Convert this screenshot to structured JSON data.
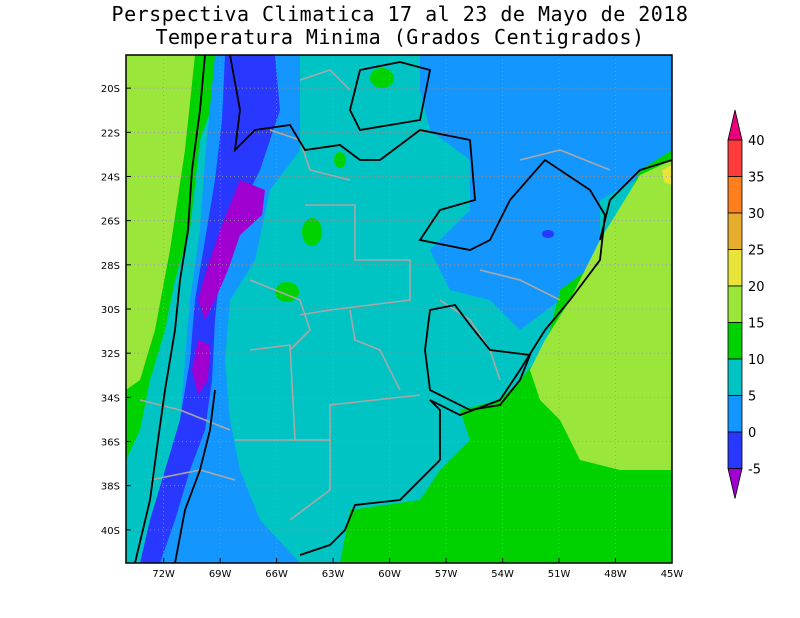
{
  "title": {
    "line1": "Perspectiva Climatica 17 al 23 de  Mayo de 2018",
    "line2": "Temperatura Minima (Grados Centigrados)"
  },
  "map": {
    "lat_labels": [
      "20S",
      "22S",
      "24S",
      "26S",
      "28S",
      "30S",
      "32S",
      "34S",
      "36S",
      "38S",
      "40S"
    ],
    "lon_labels": [
      "72W",
      "69W",
      "66W",
      "63W",
      "60W",
      "57W",
      "54W",
      "51W",
      "48W",
      "45W"
    ],
    "lat_range": [
      -41.5,
      -18.5
    ],
    "lon_range": [
      -74,
      -45
    ],
    "grid": "dotted"
  },
  "colorbar": {
    "labels": [
      "40",
      "35",
      "30",
      "25",
      "20",
      "15",
      "10",
      "5",
      "0",
      "-5"
    ],
    "colors": [
      "#e8007a",
      "#ff3b3b",
      "#ff7f1e",
      "#e6ad2e",
      "#e8e43a",
      "#9ae63a",
      "#00d200",
      "#00c3c3",
      "#1496ff",
      "#2838ff",
      "#a000d0"
    ]
  },
  "palette": {
    "purple": "#a000d0",
    "blue_dark": "#2838ff",
    "blue": "#1496ff",
    "cyan": "#00c3c3",
    "green": "#00d200",
    "lightgreen": "#9ae63a",
    "yellow": "#e8e43a"
  }
}
